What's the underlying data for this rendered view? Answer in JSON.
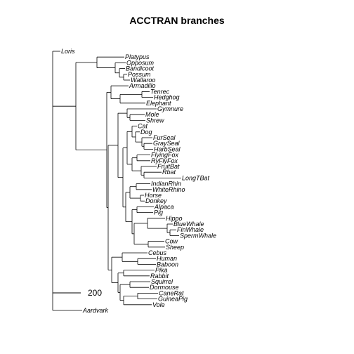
{
  "title": "ACCTRAN branches",
  "scale_bar": {
    "label": "200",
    "value": 200
  },
  "tree": {
    "children": [
      {
        "name": "Loris",
        "length": 55
      },
      {
        "length": 165,
        "children": [
          {
            "length": 150,
            "children": [
              {
                "name": "Platypus",
                "length": 195
              },
              {
                "length": 130,
                "children": [
                  {
                    "name": "Opposum",
                    "length": 75
                  },
                  {
                    "length": 30,
                    "children": [
                      {
                        "name": "Bandicoot",
                        "length": 40
                      },
                      {
                        "length": 30,
                        "children": [
                          {
                            "name": "Possum",
                            "length": 25
                          },
                          {
                            "name": "Wallaroo",
                            "length": 45
                          }
                        ]
                      }
                    ]
                  }
                ]
              }
            ]
          },
          {
            "length": 220,
            "children": [
              {
                "length": 30,
                "children": [
                  {
                    "name": "Armadillo",
                    "length": 125
                  },
                  {
                    "length": 65,
                    "children": [
                      {
                        "length": 155,
                        "children": [
                          {
                            "name": "Tenrec",
                            "length": 55
                          },
                          {
                            "name": "Hedghog",
                            "length": 80
                          }
                        ]
                      },
                      {
                        "name": "Elephant",
                        "length": 180
                      }
                    ]
                  }
                ]
              },
              {
                "length": 10,
                "children": [
                  {
                    "length": 70,
                    "children": [
                      {
                        "length": 65,
                        "children": [
                          {
                            "name": "Gymnure",
                            "length": 210
                          },
                          {
                            "length": 20,
                            "children": [
                              {
                                "name": "Mole",
                                "length": 105
                              },
                              {
                                "name": "Shrew",
                                "length": 110
                              }
                            ]
                          }
                        ]
                      },
                      {
                        "length": 35,
                        "children": [
                          {
                            "length": 30,
                            "children": [
                              {
                                "length": 35,
                                "children": [
                                  {
                                    "name": "Cat",
                                    "length": 35
                                  },
                                  {
                                    "length": 25,
                                    "children": [
                                      {
                                        "name": "Dog",
                                        "length": 30
                                      },
                                      {
                                        "length": 45,
                                        "children": [
                                          {
                                            "name": "FurSeal",
                                            "length": 75
                                          },
                                          {
                                            "length": 15,
                                            "children": [
                                              {
                                                "name": "GraySeal",
                                                "length": 60
                                              },
                                              {
                                                "name": "HarbSeal",
                                                "length": 65
                                              }
                                            ]
                                          }
                                        ]
                                      }
                                    ]
                                  }
                                ]
                              },
                              {
                                "length": 35,
                                "children": [
                                  {
                                    "length": 35,
                                    "children": [
                                      {
                                        "name": "FlyingFox",
                                        "length": 95
                                      },
                                      {
                                        "name": "RyFlyFox",
                                        "length": 95
                                      }
                                    ]
                                  },
                                  {
                                    "length": 65,
                                    "children": [
                                      {
                                        "name": "FruitBat",
                                        "length": 110
                                      },
                                      {
                                        "length": 20,
                                        "children": [
                                          {
                                            "name": "Rbat",
                                            "length": 125
                                          },
                                          {
                                            "name": "LongTBat",
                                            "length": 265
                                          }
                                        ]
                                      }
                                    ]
                                  }
                                ]
                              }
                            ]
                          },
                          {
                            "length": 20,
                            "children": [
                              {
                                "length": 30,
                                "children": [
                                  {
                                    "length": 45,
                                    "children": [
                                      {
                                        "name": "IndianRhin",
                                        "length": 100
                                      },
                                      {
                                        "name": "WhiteRhino",
                                        "length": 110
                                      }
                                    ]
                                  },
                                  {
                                    "length": 75,
                                    "children": [
                                      {
                                        "name": "Horse",
                                        "length": 25
                                      },
                                      {
                                        "name": "Donkey",
                                        "length": 30
                                      }
                                    ]
                                  }
                                ]
                              },
                              {
                                "length": 45,
                                "children": [
                                  {
                                    "length": 35,
                                    "children": [
                                      {
                                        "name": "Alpaca",
                                        "length": 120
                                      },
                                      {
                                        "name": "Pig",
                                        "length": 115
                                      }
                                    ]
                                  },
                                  {
                                    "length": 15,
                                    "children": [
                                      {
                                        "length": 95,
                                        "children": [
                                          {
                                            "name": "Hippo",
                                            "length": 125
                                          },
                                          {
                                            "length": 140,
                                            "children": [
                                              {
                                                "name": "BlueWhale",
                                                "length": 40
                                              },
                                              {
                                                "length": 20,
                                                "children": [
                                                  {
                                                    "name": "FinWhale",
                                                    "length": 45
                                                  },
                                                  {
                                                    "name": "SpermWhale",
                                                    "length": 65
                                                  }
                                                ]
                                              }
                                            ]
                                          }
                                        ]
                                      },
                                      {
                                        "length": 100,
                                        "children": [
                                          {
                                            "name": "Cow",
                                            "length": 115
                                          },
                                          {
                                            "name": "Sheep",
                                            "length": 120
                                          }
                                        ]
                                      }
                                    ]
                                  }
                                ]
                              }
                            ]
                          }
                        ]
                      }
                    ]
                  },
                  {
                    "length": 25,
                    "children": [
                      {
                        "length": 75,
                        "children": [
                          {
                            "name": "Cebus",
                            "length": 180
                          },
                          {
                            "length": 110,
                            "children": [
                              {
                                "name": "Human",
                                "length": 130
                              },
                              {
                                "name": "Baboon",
                                "length": 130
                              }
                            ]
                          }
                        ]
                      },
                      {
                        "length": 45,
                        "children": [
                          {
                            "length": 40,
                            "children": [
                              {
                                "name": "Pika",
                                "length": 220
                              },
                              {
                                "name": "Rabbit",
                                "length": 185
                              }
                            ]
                          },
                          {
                            "length": 15,
                            "children": [
                              {
                                "length": 70,
                                "children": [
                                  {
                                    "name": "Squirrel",
                                    "length": 145
                                  },
                                  {
                                    "name": "Dormouse",
                                    "length": 135
                                  }
                                ]
                              },
                              {
                                "length": 25,
                                "children": [
                                  {
                                    "length": 100,
                                    "children": [
                                      {
                                        "name": "CaneRat",
                                        "length": 145
                                      },
                                      {
                                        "name": "GuineaPig",
                                        "length": 140
                                      }
                                    ]
                                  },
                                  {
                                    "name": "Vole",
                                    "length": 200
                                  }
                                ]
                              }
                            ]
                          }
                        ]
                      }
                    ]
                  }
                ]
              }
            ]
          }
        ]
      },
      {
        "name": "Aardvark",
        "length": 210
      }
    ]
  }
}
